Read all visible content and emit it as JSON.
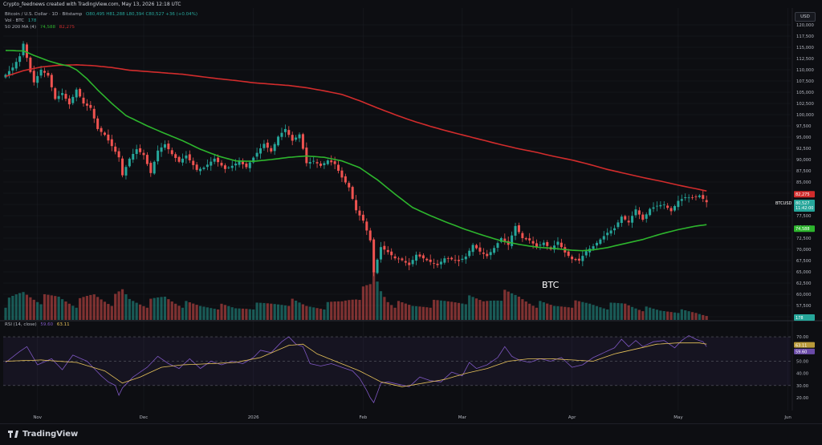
{
  "header": {
    "publisher_line": "Crypto_feednews created with TradingView.com, May 13, 2026 12:18 UTC",
    "symbol_line": "Bitcoin / U.S. Dollar · 1D · Bitstamp",
    "ohlc": "O80,495 H81,288 L80,394 C80,527 +36 (+0.04%)",
    "vol_label": "Vol · BTC",
    "vol_value": "178",
    "ma_label": "50 200 MA (4)",
    "ma50_value": "74,588",
    "ma200_value": "82,275",
    "currency": "USD"
  },
  "colors": {
    "up": "#26a69a",
    "down": "#ef5350",
    "ma50": "#2db52d",
    "ma200": "#d22c2c",
    "rsi": "#7e57c2",
    "rsi_ma": "#e8c35a",
    "background": "#0d0e12",
    "grid": "#1c1e25"
  },
  "annotation": {
    "text": "BTC"
  },
  "price_tags": {
    "ma200": "82,275",
    "symbol": "BTCUSD",
    "last": "80,527",
    "countdown": "11:42:00",
    "ma50": "74,588",
    "volume": "178"
  },
  "rsi": {
    "label": "RSI (14, close)",
    "value": "59.60",
    "ma_value": "63.11",
    "levels": [
      70,
      50,
      30
    ]
  },
  "footer": {
    "brand": "TradingView"
  },
  "chart_data": {
    "type": "candlestick",
    "price_axis": {
      "ticks": [
        "120,000",
        "117,500",
        "115,000",
        "112,500",
        "110,000",
        "107,500",
        "105,000",
        "102,500",
        "100,000",
        "97,500",
        "95,000",
        "92,500",
        "90,000",
        "87,500",
        "85,000",
        "82,500",
        "80,000",
        "77,500",
        "75,000",
        "72,500",
        "70,000",
        "67,500",
        "65,000",
        "62,500",
        "60,000",
        "57,500",
        "55,000"
      ],
      "range": [
        54000,
        121500
      ]
    },
    "rsi_axis": {
      "ticks": [
        "70.00",
        "50.00",
        "40.00",
        "30.00",
        "20.00"
      ],
      "range": [
        15,
        80
      ]
    },
    "x_axis": {
      "labels": [
        "Nov",
        "Dec",
        "2026",
        "Feb",
        "Mar",
        "Apr",
        "May",
        "Jun"
      ],
      "label_day_index": [
        9,
        39,
        70,
        101,
        129,
        160,
        190,
        221
      ]
    },
    "series": [
      {
        "name": "BTCUSD",
        "type": "candlestick"
      },
      {
        "name": "50 MA",
        "type": "line"
      },
      {
        "name": "200 MA",
        "type": "line"
      }
    ],
    "close_keypoints": [
      [
        0,
        108900
      ],
      [
        2,
        110500
      ],
      [
        4,
        113000
      ],
      [
        5,
        115800
      ],
      [
        7,
        109500
      ],
      [
        8,
        107200
      ],
      [
        10,
        110000
      ],
      [
        12,
        108700
      ],
      [
        14,
        103500
      ],
      [
        16,
        104800
      ],
      [
        18,
        102300
      ],
      [
        20,
        105600
      ],
      [
        22,
        102500
      ],
      [
        24,
        101500
      ],
      [
        26,
        96800
      ],
      [
        28,
        95500
      ],
      [
        30,
        93000
      ],
      [
        32,
        90500
      ],
      [
        33,
        86500
      ],
      [
        35,
        90200
      ],
      [
        37,
        92300
      ],
      [
        39,
        91000
      ],
      [
        41,
        87000
      ],
      [
        43,
        92000
      ],
      [
        45,
        93400
      ],
      [
        47,
        91200
      ],
      [
        49,
        89500
      ],
      [
        51,
        90900
      ],
      [
        54,
        87700
      ],
      [
        56,
        88200
      ],
      [
        59,
        90200
      ],
      [
        62,
        87900
      ],
      [
        64,
        88600
      ],
      [
        66,
        89600
      ],
      [
        68,
        88300
      ],
      [
        71,
        91500
      ],
      [
        73,
        93500
      ],
      [
        75,
        91800
      ],
      [
        77,
        95100
      ],
      [
        79,
        96800
      ],
      [
        81,
        94200
      ],
      [
        83,
        95600
      ],
      [
        85,
        89200
      ],
      [
        87,
        89700
      ],
      [
        89,
        88600
      ],
      [
        91,
        89800
      ],
      [
        93,
        89000
      ],
      [
        95,
        86000
      ],
      [
        97,
        83800
      ],
      [
        99,
        78700
      ],
      [
        101,
        76400
      ],
      [
        103,
        72000
      ],
      [
        104,
        64900
      ],
      [
        106,
        70500
      ],
      [
        108,
        69400
      ],
      [
        110,
        68000
      ],
      [
        112,
        67600
      ],
      [
        114,
        66500
      ],
      [
        116,
        68800
      ],
      [
        118,
        68000
      ],
      [
        120,
        67200
      ],
      [
        122,
        66500
      ],
      [
        124,
        68000
      ],
      [
        126,
        67800
      ],
      [
        128,
        67400
      ],
      [
        130,
        68400
      ],
      [
        132,
        71000
      ],
      [
        134,
        69500
      ],
      [
        136,
        68500
      ],
      [
        138,
        70300
      ],
      [
        140,
        72500
      ],
      [
        142,
        71000
      ],
      [
        144,
        75200
      ],
      [
        146,
        72500
      ],
      [
        148,
        72000
      ],
      [
        150,
        70600
      ],
      [
        152,
        71500
      ],
      [
        154,
        70000
      ],
      [
        156,
        71700
      ],
      [
        158,
        69300
      ],
      [
        160,
        67800
      ],
      [
        162,
        67500
      ],
      [
        164,
        69600
      ],
      [
        166,
        70700
      ],
      [
        168,
        72200
      ],
      [
        170,
        73700
      ],
      [
        172,
        74700
      ],
      [
        174,
        77300
      ],
      [
        176,
        76000
      ],
      [
        178,
        78900
      ],
      [
        180,
        76600
      ],
      [
        182,
        79000
      ],
      [
        184,
        79700
      ],
      [
        186,
        80000
      ],
      [
        188,
        78500
      ],
      [
        190,
        80800
      ],
      [
        192,
        81600
      ],
      [
        194,
        81500
      ],
      [
        196,
        82000
      ],
      [
        198,
        80500
      ]
    ],
    "ma50_keypoints": [
      [
        0,
        114300
      ],
      [
        5,
        114200
      ],
      [
        8,
        113200
      ],
      [
        12,
        112000
      ],
      [
        15,
        111300
      ],
      [
        18,
        110800
      ],
      [
        20,
        110000
      ],
      [
        23,
        108000
      ],
      [
        26,
        105500
      ],
      [
        30,
        102500
      ],
      [
        34,
        99800
      ],
      [
        40,
        97500
      ],
      [
        45,
        95800
      ],
      [
        50,
        94200
      ],
      [
        55,
        92300
      ],
      [
        60,
        90800
      ],
      [
        65,
        89700
      ],
      [
        70,
        89600
      ],
      [
        75,
        90000
      ],
      [
        80,
        90500
      ],
      [
        85,
        90800
      ],
      [
        90,
        90500
      ],
      [
        95,
        89700
      ],
      [
        100,
        88200
      ],
      [
        105,
        85500
      ],
      [
        110,
        82300
      ],
      [
        115,
        79300
      ],
      [
        120,
        77500
      ],
      [
        125,
        75900
      ],
      [
        130,
        74400
      ],
      [
        135,
        73100
      ],
      [
        140,
        71900
      ],
      [
        145,
        71100
      ],
      [
        150,
        70500
      ],
      [
        155,
        70200
      ],
      [
        160,
        69800
      ],
      [
        163,
        69700
      ],
      [
        166,
        69900
      ],
      [
        170,
        70400
      ],
      [
        175,
        71300
      ],
      [
        180,
        72200
      ],
      [
        185,
        73400
      ],
      [
        190,
        74400
      ],
      [
        195,
        75200
      ],
      [
        198,
        75500
      ]
    ],
    "ma200_keypoints": [
      [
        0,
        108500
      ],
      [
        5,
        109800
      ],
      [
        10,
        110600
      ],
      [
        15,
        111000
      ],
      [
        20,
        111100
      ],
      [
        25,
        110900
      ],
      [
        30,
        110500
      ],
      [
        35,
        109900
      ],
      [
        40,
        109600
      ],
      [
        45,
        109300
      ],
      [
        50,
        109000
      ],
      [
        55,
        108500
      ],
      [
        60,
        108000
      ],
      [
        65,
        107600
      ],
      [
        70,
        107100
      ],
      [
        75,
        106800
      ],
      [
        80,
        106500
      ],
      [
        85,
        106000
      ],
      [
        90,
        105300
      ],
      [
        95,
        104500
      ],
      [
        100,
        103100
      ],
      [
        105,
        101500
      ],
      [
        110,
        100000
      ],
      [
        115,
        98600
      ],
      [
        120,
        97400
      ],
      [
        125,
        96300
      ],
      [
        130,
        95300
      ],
      [
        135,
        94300
      ],
      [
        140,
        93300
      ],
      [
        145,
        92400
      ],
      [
        150,
        91600
      ],
      [
        155,
        90700
      ],
      [
        160,
        89900
      ],
      [
        165,
        88900
      ],
      [
        170,
        87800
      ],
      [
        175,
        86900
      ],
      [
        180,
        86000
      ],
      [
        185,
        85200
      ],
      [
        190,
        84300
      ],
      [
        195,
        83500
      ],
      [
        198,
        83000
      ]
    ],
    "volume_relative_keypoints": [
      [
        0,
        0.35
      ],
      [
        5,
        0.6
      ],
      [
        10,
        0.45
      ],
      [
        15,
        0.5
      ],
      [
        20,
        0.35
      ],
      [
        25,
        0.55
      ],
      [
        30,
        0.4
      ],
      [
        33,
        0.6
      ],
      [
        35,
        0.45
      ],
      [
        40,
        0.35
      ],
      [
        45,
        0.5
      ],
      [
        50,
        0.35
      ],
      [
        55,
        0.3
      ],
      [
        60,
        0.3
      ],
      [
        65,
        0.25
      ],
      [
        70,
        0.3
      ],
      [
        75,
        0.35
      ],
      [
        80,
        0.4
      ],
      [
        85,
        0.3
      ],
      [
        90,
        0.3
      ],
      [
        95,
        0.4
      ],
      [
        99,
        0.55
      ],
      [
        101,
        0.6
      ],
      [
        103,
        0.7
      ],
      [
        104,
        1.0
      ],
      [
        106,
        0.65
      ],
      [
        108,
        0.45
      ],
      [
        110,
        0.35
      ],
      [
        115,
        0.3
      ],
      [
        120,
        0.35
      ],
      [
        125,
        0.4
      ],
      [
        130,
        0.45
      ],
      [
        135,
        0.4
      ],
      [
        140,
        0.55
      ],
      [
        145,
        0.5
      ],
      [
        150,
        0.35
      ],
      [
        155,
        0.3
      ],
      [
        160,
        0.35
      ],
      [
        165,
        0.35
      ],
      [
        170,
        0.3
      ],
      [
        175,
        0.35
      ],
      [
        180,
        0.25
      ],
      [
        185,
        0.2
      ],
      [
        190,
        0.2
      ],
      [
        195,
        0.15
      ],
      [
        198,
        0.1
      ]
    ],
    "rsi_keypoints": [
      [
        0,
        49
      ],
      [
        4,
        58
      ],
      [
        6,
        62
      ],
      [
        9,
        47
      ],
      [
        13,
        52
      ],
      [
        16,
        43
      ],
      [
        19,
        55
      ],
      [
        23,
        50
      ],
      [
        27,
        38
      ],
      [
        29,
        33
      ],
      [
        31,
        30
      ],
      [
        32,
        22
      ],
      [
        33,
        28
      ],
      [
        36,
        37
      ],
      [
        40,
        45
      ],
      [
        43,
        54
      ],
      [
        46,
        48
      ],
      [
        49,
        44
      ],
      [
        52,
        52
      ],
      [
        55,
        44
      ],
      [
        58,
        50
      ],
      [
        61,
        47
      ],
      [
        64,
        50
      ],
      [
        67,
        48
      ],
      [
        70,
        53
      ],
      [
        72,
        59
      ],
      [
        75,
        57
      ],
      [
        78,
        66
      ],
      [
        80,
        70
      ],
      [
        82,
        64
      ],
      [
        84,
        62
      ],
      [
        86,
        48
      ],
      [
        89,
        46
      ],
      [
        92,
        48
      ],
      [
        95,
        45
      ],
      [
        98,
        42
      ],
      [
        100,
        36
      ],
      [
        102,
        26
      ],
      [
        103,
        20
      ],
      [
        104,
        16
      ],
      [
        106,
        32
      ],
      [
        108,
        33
      ],
      [
        111,
        31
      ],
      [
        114,
        29
      ],
      [
        117,
        37
      ],
      [
        120,
        34
      ],
      [
        123,
        33
      ],
      [
        126,
        41
      ],
      [
        129,
        38
      ],
      [
        131,
        49
      ],
      [
        133,
        44
      ],
      [
        136,
        47
      ],
      [
        139,
        53
      ],
      [
        141,
        62
      ],
      [
        143,
        54
      ],
      [
        145,
        51
      ],
      [
        148,
        49
      ],
      [
        151,
        52
      ],
      [
        154,
        50
      ],
      [
        157,
        53
      ],
      [
        160,
        45
      ],
      [
        163,
        47
      ],
      [
        166,
        53
      ],
      [
        169,
        57
      ],
      [
        172,
        61
      ],
      [
        174,
        68
      ],
      [
        176,
        62
      ],
      [
        178,
        67
      ],
      [
        180,
        62
      ],
      [
        183,
        66
      ],
      [
        186,
        67
      ],
      [
        189,
        61
      ],
      [
        191,
        67
      ],
      [
        193,
        71
      ],
      [
        195,
        68
      ],
      [
        197,
        66
      ],
      [
        198,
        62
      ]
    ],
    "rsi_ma_keypoints": [
      [
        0,
        50
      ],
      [
        10,
        51
      ],
      [
        20,
        49
      ],
      [
        28,
        42
      ],
      [
        33,
        32
      ],
      [
        38,
        37
      ],
      [
        44,
        45
      ],
      [
        50,
        47
      ],
      [
        58,
        48
      ],
      [
        65,
        49
      ],
      [
        72,
        53
      ],
      [
        80,
        63
      ],
      [
        84,
        64
      ],
      [
        88,
        56
      ],
      [
        94,
        49
      ],
      [
        100,
        42
      ],
      [
        106,
        33
      ],
      [
        112,
        29
      ],
      [
        118,
        32
      ],
      [
        124,
        35
      ],
      [
        130,
        40
      ],
      [
        136,
        44
      ],
      [
        142,
        50
      ],
      [
        148,
        52
      ],
      [
        154,
        52
      ],
      [
        160,
        51
      ],
      [
        166,
        50
      ],
      [
        172,
        56
      ],
      [
        178,
        60
      ],
      [
        184,
        64
      ],
      [
        190,
        65
      ],
      [
        196,
        65
      ],
      [
        198,
        64
      ]
    ]
  }
}
